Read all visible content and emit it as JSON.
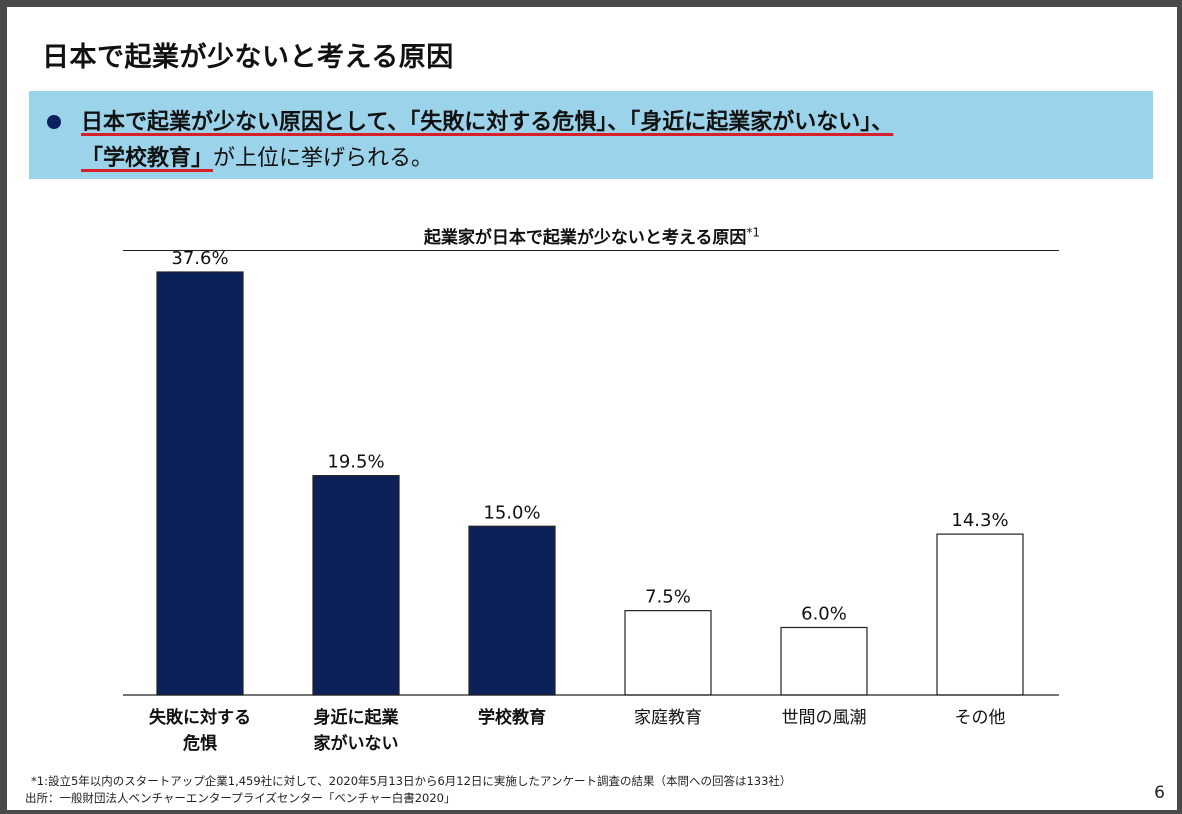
{
  "slide": {
    "title": "日本で起業が少ないと考える原因",
    "summary": {
      "line1_emph": "日本で起業が少ない原因として、「失敗に対する危惧」、「身近に起業家がいない」、",
      "line2_emph": "「学校教育」",
      "line2_rest": "が上位に挙げられる。"
    },
    "footnote1": "*1:設立5年以内のスタートアップ企業1,459社に対して、2020年5月13日から6月12日に実施したアンケート調査の結果（本問への回答は133社）",
    "footnote2": "出所：一般財団法人ベンチャーエンタープライズセンター「ベンチャー白書2020」",
    "page_number": "6"
  },
  "chart_data": {
    "type": "bar",
    "title": "起業家が日本で起業が少ないと考える原因",
    "title_note": "*1",
    "categories": [
      "失敗に対する危惧",
      "身近に起業家がいない",
      "学校教育",
      "家庭教育",
      "世間の風潮",
      "その他"
    ],
    "category_lines": [
      [
        "失敗に対する",
        "危惧"
      ],
      [
        "身近に起業",
        "家がいない"
      ],
      [
        "学校教育"
      ],
      [
        "家庭教育"
      ],
      [
        "世間の風潮"
      ],
      [
        "その他"
      ]
    ],
    "values": [
      37.6,
      19.5,
      15.0,
      7.5,
      6.0,
      14.3
    ],
    "value_labels": [
      "37.6%",
      "19.5%",
      "15.0%",
      "7.5%",
      "6.0%",
      "14.3%"
    ],
    "highlighted": [
      true,
      true,
      true,
      false,
      false,
      false
    ],
    "ylim": [
      0,
      40
    ],
    "unit": "%",
    "grid": false,
    "colors": {
      "highlight_fill": "#0c2158",
      "normal_fill": "#ffffff",
      "stroke": "#222222",
      "summary_bg": "#9bd4ea",
      "underline": "#d8202a"
    }
  }
}
